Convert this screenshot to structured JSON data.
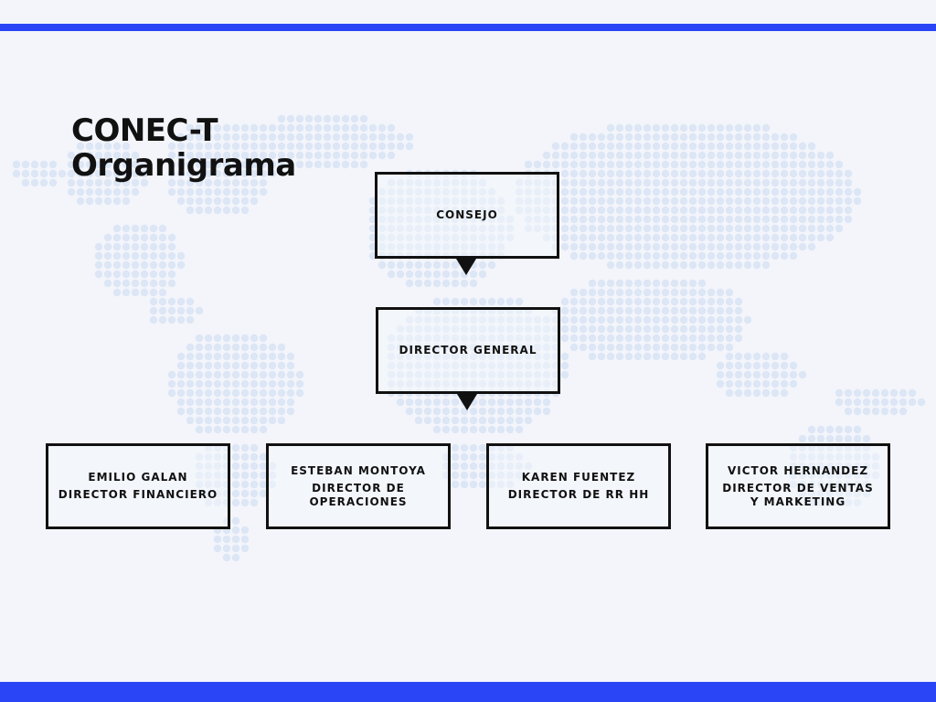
{
  "title": {
    "line1": "CONEC-T",
    "line2": "Organigrama"
  },
  "nodes": {
    "consejo": {
      "label": "CONSEJO"
    },
    "director_general": {
      "label": "DIRECTOR GENERAL"
    },
    "financiero": {
      "name": "EMILIO GALAN",
      "role": "DIRECTOR FINANCIERO"
    },
    "operaciones": {
      "name": "ESTEBAN MONTOYA",
      "role": "DIRECTOR DE OPERACIONES"
    },
    "rrhh": {
      "name": "KAREN FUENTEZ",
      "role": "DIRECTOR DE RR HH"
    },
    "ventas": {
      "name": "VICTOR HERNANDEZ",
      "role": "DIRECTOR DE VENTAS Y MARKETING"
    }
  },
  "colors": {
    "accent": "#2a45f5",
    "background": "#f3f5fb",
    "map_dots": "#dce6f5",
    "box_border": "#111111"
  }
}
